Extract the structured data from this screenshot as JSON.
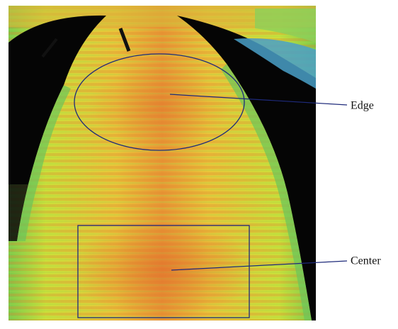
{
  "annotations": {
    "edge": "Edge",
    "center": "Center"
  }
}
